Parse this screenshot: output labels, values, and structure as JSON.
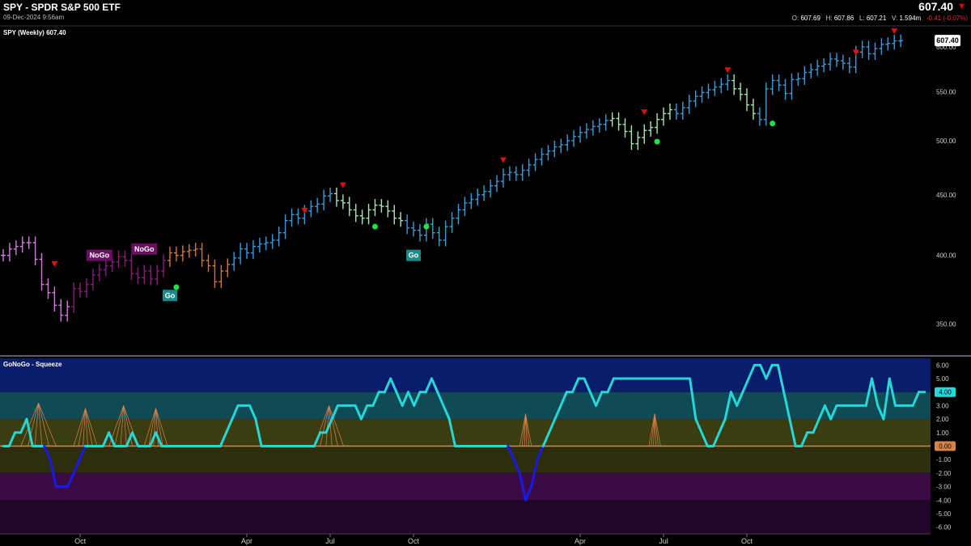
{
  "header": {
    "title": "SPY - SPDR S&P 500 ETF",
    "datetime": "09-Dec-2024 9:56am",
    "last_price": "607.40",
    "open_label": "O:",
    "open": "607.69",
    "high_label": "H:",
    "high": "607.86",
    "low_label": "L:",
    "low": "607.21",
    "volume_label": "V:",
    "volume": "1.594m",
    "change": "-0.41 (-0.07%)",
    "down_icon": "triangle-down-icon"
  },
  "price_panel": {
    "label": "SPY (Weekly) 607.40"
  },
  "oscillator_panel": {
    "label": "GoNoGo - Squeeze"
  },
  "chart_data": [
    {
      "type": "bar",
      "style": "ohlc-weekly",
      "label": "SPY (Weekly) 607.40",
      "y_scale": "log",
      "ylim": [
        330,
        625
      ],
      "yticks": [
        350,
        400,
        450,
        500,
        550,
        600
      ],
      "ytick_labels": [
        "350.00",
        "400.00",
        "450.00",
        "500.00",
        "550.00",
        "600.00"
      ],
      "xticks": [
        "Oct",
        "Apr",
        "Jul",
        "Oct",
        "Apr",
        "Jul",
        "Oct"
      ],
      "last_price_tag": "607.40",
      "grid": false,
      "colors": {
        "strong_go": "#3a9ad9",
        "weak_go": "#a8e6b0",
        "nogo": "#8b1a7a",
        "weak_nogo": "#d67adf",
        "amber": "#d07a30"
      },
      "closes": [
        400,
        405,
        407,
        410,
        410,
        397,
        378,
        372,
        363,
        356,
        362,
        375,
        373,
        378,
        385,
        389,
        392,
        395,
        399,
        396,
        386,
        383,
        388,
        382,
        388,
        396,
        402,
        400,
        403,
        404,
        405,
        396,
        392,
        380,
        388,
        393,
        398,
        405,
        402,
        407,
        409,
        410,
        412,
        418,
        428,
        433,
        430,
        436,
        440,
        442,
        449,
        451,
        445,
        443,
        437,
        432,
        430,
        437,
        441,
        440,
        436,
        430,
        428,
        422,
        420,
        416,
        425,
        418,
        412,
        423,
        430,
        437,
        443,
        446,
        450,
        453,
        458,
        462,
        468,
        470,
        468,
        472,
        477,
        482,
        487,
        490,
        494,
        496,
        500,
        504,
        508,
        511,
        514,
        516,
        520,
        522,
        516,
        509,
        497,
        503,
        510,
        513,
        521,
        527,
        531,
        527,
        533,
        540,
        545,
        549,
        552,
        555,
        558,
        562,
        553,
        547,
        536,
        527,
        521,
        553,
        562,
        557,
        548,
        563,
        564,
        571,
        574,
        578,
        580,
        586,
        584,
        581,
        577,
        594,
        600,
        592,
        598,
        603,
        604,
        607,
        607.4
      ],
      "zones": [
        {
          "from": 0,
          "to": 11,
          "state": "weak-nogo"
        },
        {
          "from": 11,
          "to": 26,
          "state": "nogo"
        },
        {
          "from": 26,
          "to": 36,
          "state": "amber"
        },
        {
          "from": 36,
          "to": 52,
          "state": "strong-go"
        },
        {
          "from": 52,
          "to": 63,
          "state": "weak-go"
        },
        {
          "from": 63,
          "to": 95,
          "state": "strong-go"
        },
        {
          "from": 95,
          "to": 105,
          "state": "weak-go"
        },
        {
          "from": 105,
          "to": 114,
          "state": "strong-go"
        },
        {
          "from": 114,
          "to": 118,
          "state": "weak-go"
        },
        {
          "from": 118,
          "to": 141,
          "state": "strong-go"
        }
      ],
      "annotations": [
        {
          "text": "NoGo",
          "week": 15,
          "price": 400
        },
        {
          "text": "NoGo",
          "week": 22,
          "price": 405
        },
        {
          "text": "Go",
          "week": 26,
          "price": 370
        },
        {
          "text": "Go",
          "week": 64,
          "price": 400
        }
      ],
      "countertrend_up": [
        {
          "week": 27,
          "price": 376
        },
        {
          "week": 58,
          "price": 423
        },
        {
          "week": 66,
          "price": 423
        },
        {
          "week": 102,
          "price": 499
        },
        {
          "week": 120,
          "price": 517
        }
      ],
      "countertrend_down": [
        {
          "week": 8,
          "price": 393
        },
        {
          "week": 47,
          "price": 436
        },
        {
          "week": 53,
          "price": 458
        },
        {
          "week": 78,
          "price": 481
        },
        {
          "week": 100,
          "price": 528
        },
        {
          "week": 113,
          "price": 573
        },
        {
          "week": 133,
          "price": 593
        },
        {
          "week": 139,
          "price": 618
        }
      ]
    },
    {
      "type": "line",
      "label": "GoNoGo - Squeeze",
      "ylim": [
        -6.5,
        6.5
      ],
      "yticks": [
        6,
        5,
        4,
        3,
        2,
        1,
        0,
        -1,
        -2,
        -3,
        -4,
        -5,
        -6
      ],
      "ytick_labels": [
        "6.00",
        "5.00",
        "4.00",
        "3.00",
        "2.00",
        "1.00",
        "0.00",
        "-1.00",
        "-2.00",
        "-3.00",
        "-4.00",
        "-5.00",
        "-6.00"
      ],
      "last_value_tag": "4.00",
      "zero_tag": "0.00",
      "bands": [
        {
          "from": 4,
          "to": 6.5,
          "color": "#0a1d6b"
        },
        {
          "from": 2,
          "to": 4,
          "color": "#0f4a55"
        },
        {
          "from": 0,
          "to": 2,
          "color": "#3a3d10"
        },
        {
          "from": -2,
          "to": 0,
          "color": "#2e2e0c"
        },
        {
          "from": -4,
          "to": -2,
          "color": "#3a0b45"
        },
        {
          "from": -6.5,
          "to": -4,
          "color": "#22062a"
        }
      ],
      "series": [
        {
          "values": [
            0,
            0,
            1,
            1,
            2,
            0,
            0,
            0,
            -1,
            -3,
            -3,
            -3,
            -2,
            -1,
            0,
            0,
            0,
            0,
            1,
            0,
            0,
            0,
            1,
            0,
            0,
            0,
            1,
            0,
            0,
            0,
            0,
            0,
            0,
            0,
            0,
            0,
            0,
            0,
            1,
            2,
            3,
            3,
            3,
            2,
            0,
            0,
            0,
            0,
            0,
            0,
            0,
            0,
            0,
            0,
            1,
            1,
            2,
            3,
            3,
            3,
            3,
            2,
            3,
            3,
            4,
            4,
            5,
            4,
            3,
            4,
            3,
            4,
            4,
            5,
            4,
            3,
            2,
            0,
            0,
            0,
            0,
            0,
            0,
            0,
            0,
            0,
            0,
            -1,
            -2,
            -4,
            -3,
            -1,
            0,
            1,
            2,
            3,
            4,
            4,
            5,
            5,
            4,
            3,
            4,
            4,
            5,
            5,
            5,
            5,
            5,
            5,
            5,
            5,
            5,
            5,
            5,
            5,
            5,
            5,
            2,
            1,
            0,
            0,
            1,
            2,
            4,
            3,
            4,
            5,
            6,
            6,
            5,
            6,
            6,
            4,
            2,
            0,
            0,
            1,
            1,
            2,
            3,
            2,
            3,
            3,
            3,
            3,
            3,
            3,
            5,
            3,
            2,
            5,
            3,
            3,
            3,
            3,
            4,
            4
          ],
          "color": "#27d6d6",
          "negative_color": "#1a1ae6"
        }
      ],
      "squeeze_grid_regions": [
        [
          3,
          9
        ],
        [
          12,
          16
        ],
        [
          18,
          23
        ],
        [
          24,
          28
        ],
        [
          53,
          58
        ],
        [
          88,
          90
        ],
        [
          110,
          112
        ]
      ],
      "squeeze_color": "#d9824a",
      "zero_line_color": "#d9824a"
    }
  ]
}
